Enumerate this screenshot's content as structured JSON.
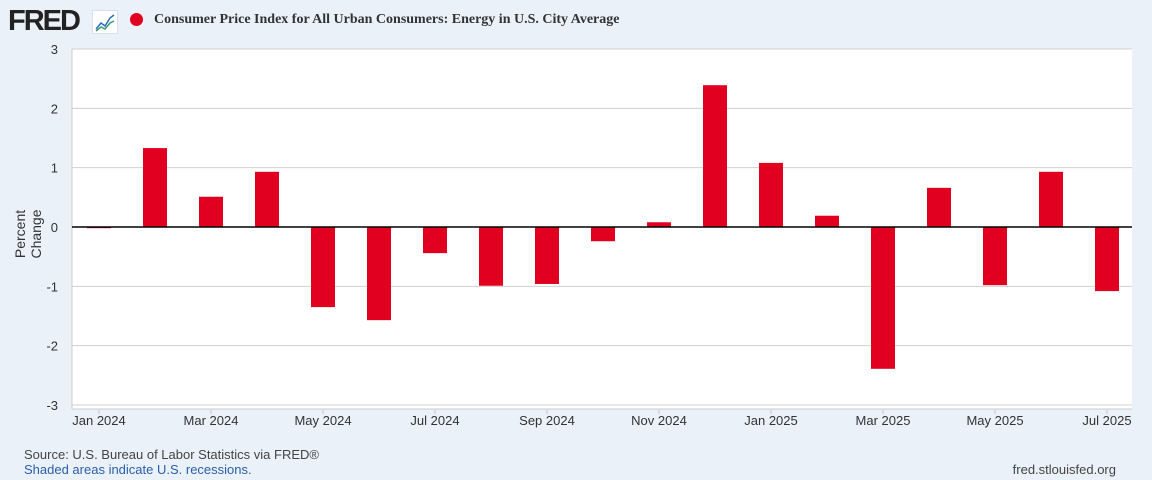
{
  "header": {
    "logo": "FRED",
    "title": "Consumer Price Index for All Urban Consumers: Energy in U.S. City Average"
  },
  "footer": {
    "source": "Source: U.S. Bureau of Labor Statistics via FRED®",
    "recessions": "Shaded areas indicate U.S. recessions.",
    "url": "fred.stlouisfed.org"
  },
  "colors": {
    "bar": "#e1001f"
  },
  "chart_data": {
    "type": "bar",
    "title": "Consumer Price Index for All Urban Consumers: Energy in U.S. City Average",
    "ylabel": "Percent Change",
    "xlabel": "",
    "ylim": [
      -3,
      3
    ],
    "yticks": [
      3,
      2,
      1,
      0,
      -1,
      -2,
      -3
    ],
    "xtick_labels": [
      "Jan 2024",
      "Mar 2024",
      "May 2024",
      "Jul 2024",
      "Sep 2024",
      "Nov 2024",
      "Jan 2025",
      "Mar 2025",
      "May 2025",
      "Jul 2025"
    ],
    "categories": [
      "2024-01",
      "2024-02",
      "2024-03",
      "2024-04",
      "2024-05",
      "2024-06",
      "2024-07",
      "2024-08",
      "2024-09",
      "2024-10",
      "2024-11",
      "2024-12",
      "2025-01",
      "2025-02",
      "2025-03",
      "2025-04",
      "2025-05",
      "2025-06",
      "2025-07"
    ],
    "values": [
      -0.02,
      1.33,
      0.51,
      0.93,
      -1.35,
      -1.57,
      -0.44,
      -0.99,
      -0.96,
      -0.24,
      0.08,
      2.39,
      1.08,
      0.19,
      -2.39,
      0.66,
      -0.98,
      0.93,
      -1.08
    ]
  }
}
